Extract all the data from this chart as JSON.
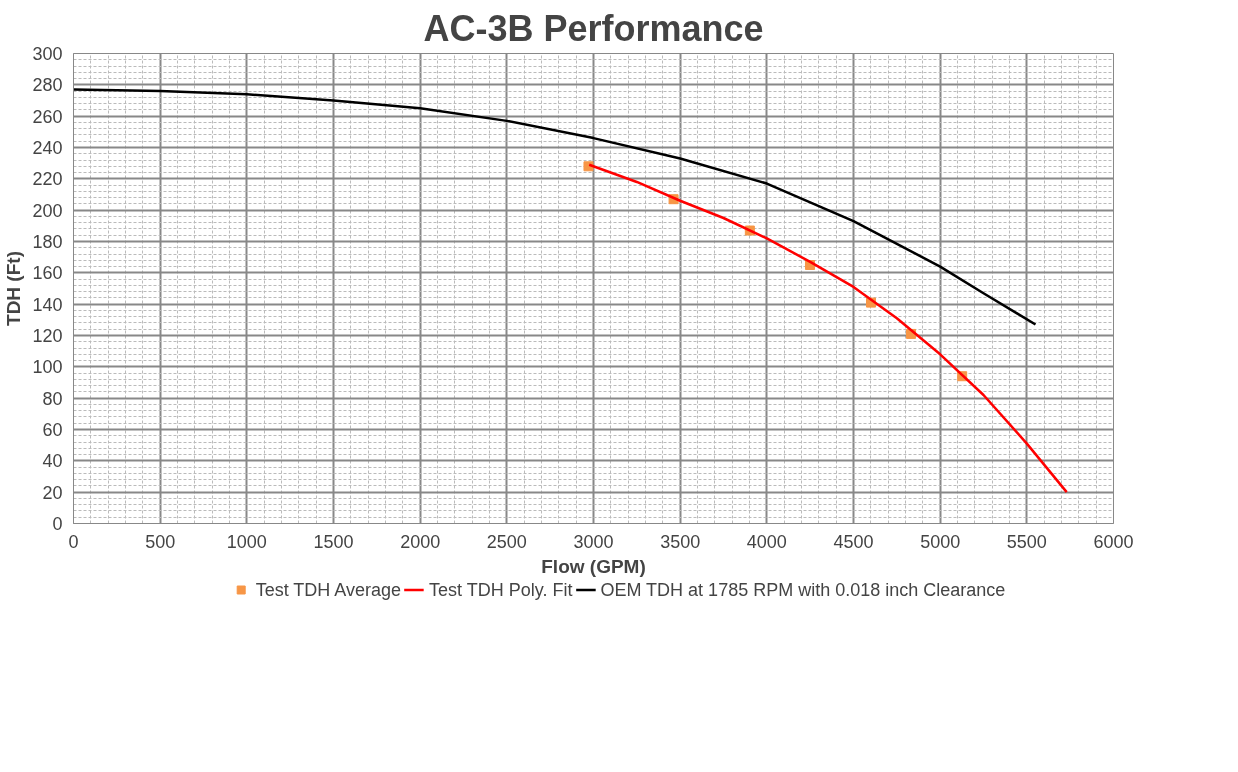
{
  "chart_data": {
    "type": "line",
    "title": "AC-3B Performance",
    "xlabel": "Flow (GPM)",
    "ylabel": "TDH (Ft)",
    "xlim": [
      0,
      6000
    ],
    "xticks": [
      0,
      500,
      1000,
      1500,
      2000,
      2500,
      3000,
      3500,
      4000,
      4500,
      5000,
      5500,
      6000
    ],
    "ylim": [
      0,
      300
    ],
    "yticks": [
      0,
      20,
      40,
      60,
      80,
      100,
      120,
      140,
      160,
      180,
      200,
      220,
      240,
      260,
      280,
      300
    ],
    "grid": true,
    "legend": "bottom",
    "series": [
      {
        "name": "Test TDH Average",
        "type": "scatter",
        "marker": "square",
        "color": "#f79646",
        "x": [
          2971,
          3462,
          3902,
          4249,
          4601,
          4832,
          5127
        ],
        "values": [
          228,
          207,
          187,
          165,
          141,
          121,
          94
        ]
      },
      {
        "name": "Test TDH Poly. Fit",
        "color": "#ff0000",
        "x": [
          2975,
          3250,
          3500,
          3750,
          4000,
          4250,
          4500,
          4750,
          5000,
          5250,
          5500,
          5730
        ],
        "values": [
          229,
          218,
          206,
          195,
          182,
          167,
          151,
          131,
          108,
          82,
          51,
          20
        ]
      },
      {
        "name": "OEM TDH at 1785 RPM with 0.018 inch Clearance",
        "color": "#000000",
        "x": [
          0,
          500,
          1000,
          1500,
          2000,
          2500,
          3000,
          3500,
          4000,
          4500,
          5000,
          5250,
          5550
        ],
        "values": [
          277,
          276,
          274,
          270,
          265,
          257,
          246,
          233,
          217,
          193,
          164,
          147,
          127
        ]
      }
    ]
  }
}
